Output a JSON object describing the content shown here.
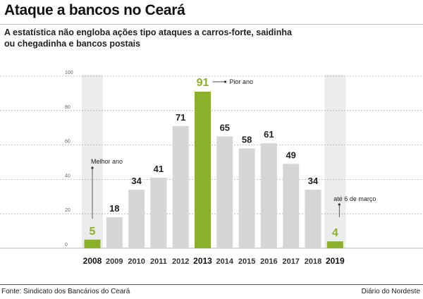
{
  "title": "Ataque a bancos no Ceará",
  "subtitle": "A estatística não engloba ações tipo ataques a carros-forte, saidinha ou chegadinha e bancos postais",
  "footer": {
    "source": "Fonte: Sindicato dos Bancários do Ceará",
    "credit": "Diário do Nordeste"
  },
  "colors": {
    "bar": "#d5d6d8",
    "highlight": "#8bb12a",
    "highlight_col_bg": "#ececec",
    "grid": "#b3b3b3"
  },
  "chart_data": {
    "type": "bar",
    "title": "Ataque a bancos no Ceará",
    "xlabel": "",
    "ylabel": "",
    "ylim": [
      0,
      100
    ],
    "yticks": [
      0,
      20,
      40,
      60,
      80,
      100
    ],
    "categories": [
      "2008",
      "2009",
      "2010",
      "2011",
      "2012",
      "2013",
      "2014",
      "2015",
      "2016",
      "2017",
      "2018",
      "2019"
    ],
    "values": [
      5,
      18,
      34,
      41,
      71,
      91,
      65,
      58,
      61,
      49,
      34,
      4
    ],
    "highlighted": [
      "2008",
      "2013",
      "2019"
    ],
    "shaded_columns": [
      "2008",
      "2019"
    ],
    "annotations": [
      {
        "category": "2008",
        "text": "Melhor ano"
      },
      {
        "category": "2013",
        "text": "Pior ano"
      },
      {
        "category": "2019",
        "text": "até 6 de março"
      }
    ]
  }
}
